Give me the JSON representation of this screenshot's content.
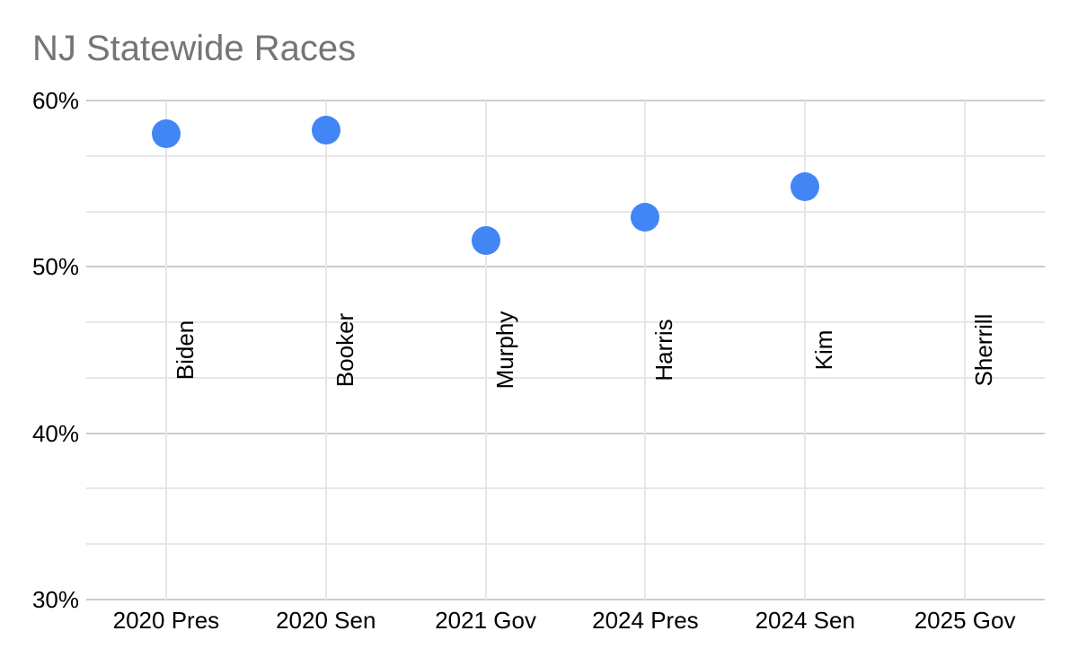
{
  "colors": {
    "point": "#4285f4",
    "title_text": "#757575",
    "axis_text": "#000000",
    "gridline_major": "#cccccc",
    "gridline_minor": "#e7e7e7",
    "background": "#ffffff"
  },
  "chart_data": {
    "type": "scatter",
    "title": "NJ Statewide Races",
    "categories": [
      "2020 Pres",
      "2020 Sen",
      "2021 Gov",
      "2024 Pres",
      "2024 Sen",
      "2025 Gov"
    ],
    "points": [
      {
        "category": "2020 Pres",
        "label": "Biden",
        "value": 58.0
      },
      {
        "category": "2020 Sen",
        "label": "Booker",
        "value": 58.2
      },
      {
        "category": "2021 Gov",
        "label": "Murphy",
        "value": 51.6
      },
      {
        "category": "2024 Pres",
        "label": "Harris",
        "value": 53.0
      },
      {
        "category": "2024 Sen",
        "label": "Kim",
        "value": 54.8
      },
      {
        "category": "2025 Gov",
        "label": "Sherrill",
        "value": null
      }
    ],
    "ylim": [
      30,
      60
    ],
    "y_axis": {
      "tick_labels": [
        "60%",
        "50%",
        "40%",
        "30%"
      ],
      "tick_values": [
        60,
        50,
        40,
        30
      ],
      "minor_gridlines_per_major": 2
    },
    "grid": true,
    "legend": "none",
    "point_label_rotation": -90
  }
}
